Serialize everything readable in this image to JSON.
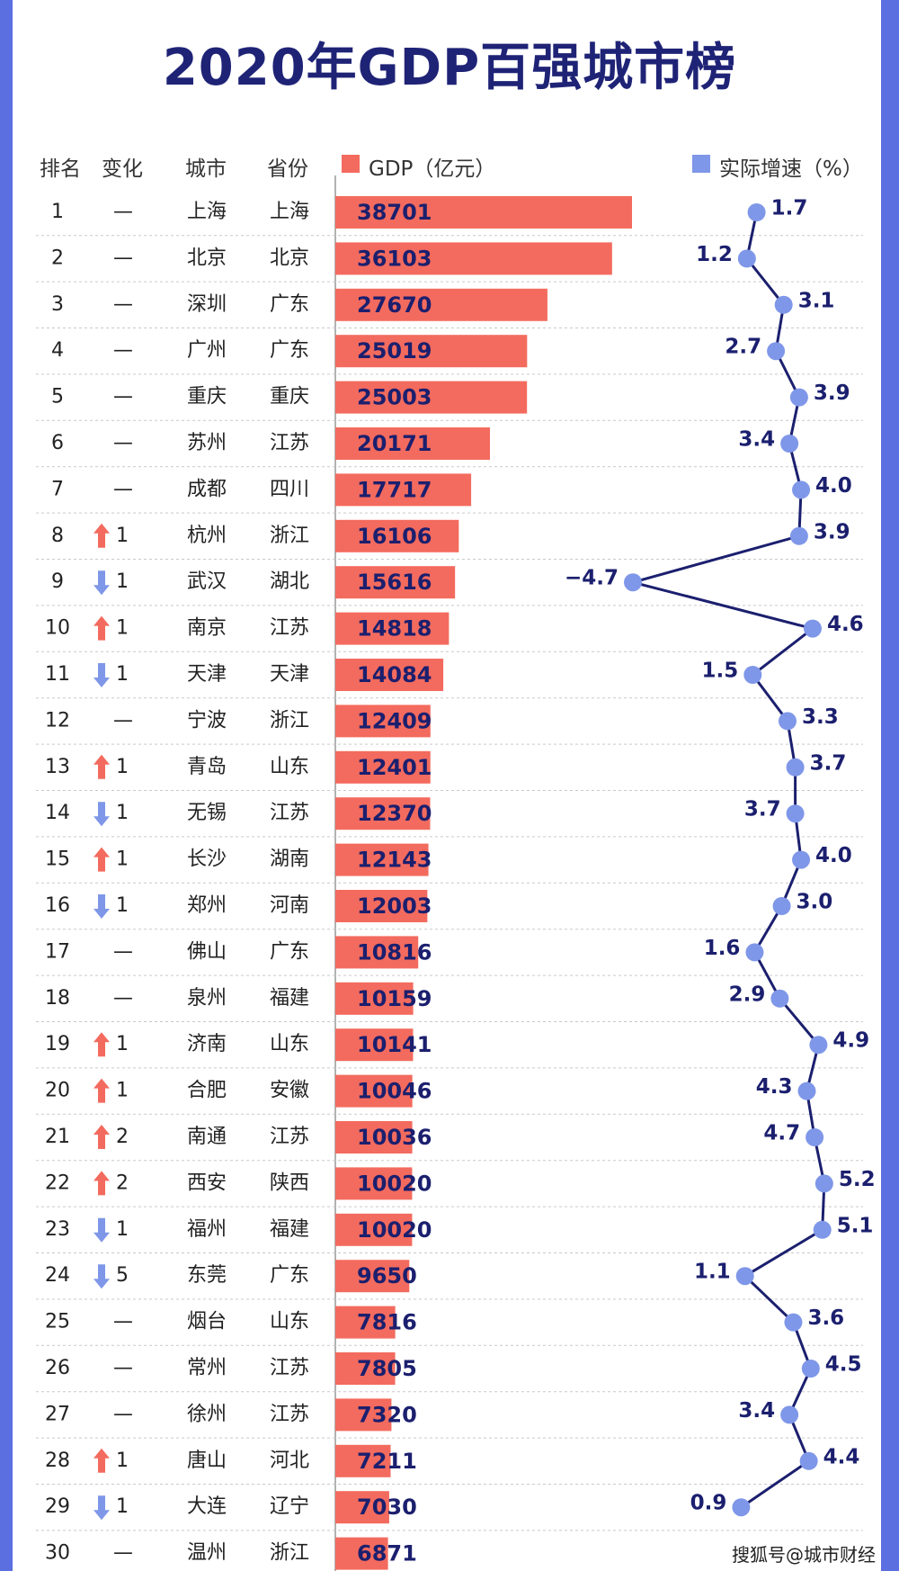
{
  "title": "2020年GDP百强城市榜",
  "headers": {
    "rank": "排名",
    "change": "变化",
    "city": "城市",
    "province": "省份",
    "gdp": "GDP（亿元）",
    "growth": "实际增速（%）"
  },
  "footer": "搜狐号@城市财经",
  "colors": {
    "bar": "#f36b5e",
    "dot": "#7f97e8",
    "line": "#1b1f6e",
    "up": "#f36b5e",
    "down": "#7f97e8"
  },
  "chart_data": {
    "type": "table",
    "columns": [
      "rank",
      "change",
      "city",
      "province",
      "gdp",
      "growth"
    ],
    "rows": [
      {
        "rank": "1",
        "dir": "none",
        "change": "—",
        "city": "上海",
        "province": "上海",
        "gdp": 38701,
        "growth": 1.7
      },
      {
        "rank": "2",
        "dir": "none",
        "change": "—",
        "city": "北京",
        "province": "北京",
        "gdp": 36103,
        "growth": 1.2
      },
      {
        "rank": "3",
        "dir": "none",
        "change": "—",
        "city": "深圳",
        "province": "广东",
        "gdp": 27670,
        "growth": 3.1
      },
      {
        "rank": "4",
        "dir": "none",
        "change": "—",
        "city": "广州",
        "province": "广东",
        "gdp": 25019,
        "growth": 2.7
      },
      {
        "rank": "5",
        "dir": "none",
        "change": "—",
        "city": "重庆",
        "province": "重庆",
        "gdp": 25003,
        "growth": 3.9
      },
      {
        "rank": "6",
        "dir": "none",
        "change": "—",
        "city": "苏州",
        "province": "江苏",
        "gdp": 20171,
        "growth": 3.4
      },
      {
        "rank": "7",
        "dir": "none",
        "change": "—",
        "city": "成都",
        "province": "四川",
        "gdp": 17717,
        "growth": 4.0
      },
      {
        "rank": "8",
        "dir": "up",
        "change": "1",
        "city": "杭州",
        "province": "浙江",
        "gdp": 16106,
        "growth": 3.9
      },
      {
        "rank": "9",
        "dir": "down",
        "change": "1",
        "city": "武汉",
        "province": "湖北",
        "gdp": 15616,
        "growth": -4.7
      },
      {
        "rank": "10",
        "dir": "up",
        "change": "1",
        "city": "南京",
        "province": "江苏",
        "gdp": 14818,
        "growth": 4.6
      },
      {
        "rank": "11",
        "dir": "down",
        "change": "1",
        "city": "天津",
        "province": "天津",
        "gdp": 14084,
        "growth": 1.5
      },
      {
        "rank": "12",
        "dir": "none",
        "change": "—",
        "city": "宁波",
        "province": "浙江",
        "gdp": 12409,
        "growth": 3.3
      },
      {
        "rank": "13",
        "dir": "up",
        "change": "1",
        "city": "青岛",
        "province": "山东",
        "gdp": 12401,
        "growth": 3.7
      },
      {
        "rank": "14",
        "dir": "down",
        "change": "1",
        "city": "无锡",
        "province": "江苏",
        "gdp": 12370,
        "growth": 3.7
      },
      {
        "rank": "15",
        "dir": "up",
        "change": "1",
        "city": "长沙",
        "province": "湖南",
        "gdp": 12143,
        "growth": 4.0
      },
      {
        "rank": "16",
        "dir": "down",
        "change": "1",
        "city": "郑州",
        "province": "河南",
        "gdp": 12003,
        "growth": 3.0
      },
      {
        "rank": "17",
        "dir": "none",
        "change": "—",
        "city": "佛山",
        "province": "广东",
        "gdp": 10816,
        "growth": 1.6
      },
      {
        "rank": "18",
        "dir": "none",
        "change": "—",
        "city": "泉州",
        "province": "福建",
        "gdp": 10159,
        "growth": 2.9
      },
      {
        "rank": "19",
        "dir": "up",
        "change": "1",
        "city": "济南",
        "province": "山东",
        "gdp": 10141,
        "growth": 4.9
      },
      {
        "rank": "20",
        "dir": "up",
        "change": "1",
        "city": "合肥",
        "province": "安徽",
        "gdp": 10046,
        "growth": 4.3
      },
      {
        "rank": "21",
        "dir": "up",
        "change": "2",
        "city": "南通",
        "province": "江苏",
        "gdp": 10036,
        "growth": 4.7
      },
      {
        "rank": "22",
        "dir": "up",
        "change": "2",
        "city": "西安",
        "province": "陕西",
        "gdp": 10020,
        "growth": 5.2
      },
      {
        "rank": "23",
        "dir": "down",
        "change": "1",
        "city": "福州",
        "province": "福建",
        "gdp": 10020,
        "growth": 5.1
      },
      {
        "rank": "24",
        "dir": "down",
        "change": "5",
        "city": "东莞",
        "province": "广东",
        "gdp": 9650,
        "growth": 1.1
      },
      {
        "rank": "25",
        "dir": "none",
        "change": "—",
        "city": "烟台",
        "province": "山东",
        "gdp": 7816,
        "growth": 3.6
      },
      {
        "rank": "26",
        "dir": "none",
        "change": "—",
        "city": "常州",
        "province": "江苏",
        "gdp": 7805,
        "growth": 4.5
      },
      {
        "rank": "27",
        "dir": "none",
        "change": "—",
        "city": "徐州",
        "province": "江苏",
        "gdp": 7320,
        "growth": 3.4
      },
      {
        "rank": "28",
        "dir": "up",
        "change": "1",
        "city": "唐山",
        "province": "河北",
        "gdp": 7211,
        "growth": 4.4
      },
      {
        "rank": "29",
        "dir": "down",
        "change": "1",
        "city": "大连",
        "province": "辽宁",
        "gdp": 7030,
        "growth": 0.9
      },
      {
        "rank": "30",
        "dir": "none",
        "change": "—",
        "city": "温州",
        "province": "浙江",
        "gdp": 6871,
        "growth": null
      }
    ]
  }
}
